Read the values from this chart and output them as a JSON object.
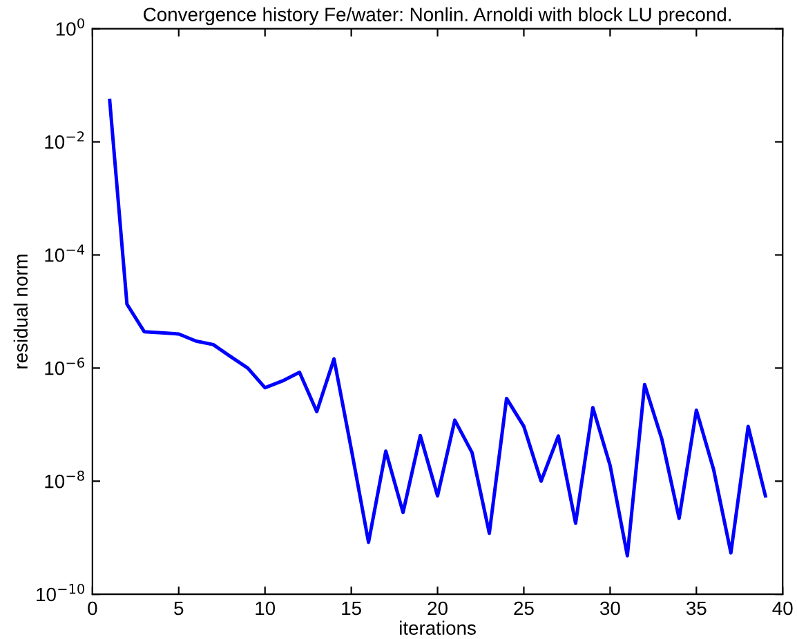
{
  "chart_data": {
    "type": "line",
    "title": "Convergence history Fe/water: Nonlin. Arnoldi with block LU precond.",
    "xlabel": "iterations",
    "ylabel": "residual norm",
    "x": [
      1,
      2,
      3,
      4,
      5,
      6,
      7,
      8,
      9,
      10,
      11,
      12,
      13,
      14,
      15,
      16,
      17,
      18,
      19,
      20,
      21,
      22,
      23,
      24,
      25,
      26,
      27,
      28,
      29,
      30,
      31,
      32,
      33,
      34,
      35,
      36,
      37,
      38,
      39
    ],
    "series": [
      {
        "color": "#0000ff",
        "values": [
          0.054,
          1.35e-05,
          4.4e-06,
          4.2e-06,
          4e-06,
          3e-06,
          2.6e-06,
          1.6e-06,
          1e-06,
          4.5e-07,
          5.9e-07,
          8.4e-07,
          1.7e-07,
          1.45e-06,
          3.7e-08,
          8.3e-10,
          3.4e-08,
          2.8e-09,
          6.4e-08,
          5.5e-09,
          1.2e-07,
          3.2e-08,
          1.2e-09,
          2.9e-07,
          9.3e-08,
          1e-08,
          6.3e-08,
          1.8e-09,
          2e-07,
          1.9e-08,
          4.8e-10,
          5.1e-07,
          5.5e-08,
          2.2e-09,
          1.8e-07,
          1.6e-08,
          5.4e-10,
          9.3e-08,
          5.5e-09
        ]
      }
    ],
    "log": "y",
    "xlim": [
      0,
      40
    ],
    "xticks": [
      0,
      5,
      10,
      15,
      20,
      25,
      30,
      35,
      40
    ],
    "ylim": [
      1e-10,
      1
    ],
    "yticks": [
      {
        "value": 1e-10,
        "label": "10$^{−10}$"
      },
      {
        "value": 1e-08,
        "label": "10$^{−8}$"
      },
      {
        "value": 1e-06,
        "label": "10$^{−6}$"
      },
      {
        "value": 0.0001,
        "label": "10$^{−4}$"
      },
      {
        "value": 0.01,
        "label": "10$^{−2}$"
      },
      {
        "value": 1,
        "label": "10$^{0}$"
      }
    ],
    "line_style": "solid",
    "marker": "none"
  }
}
